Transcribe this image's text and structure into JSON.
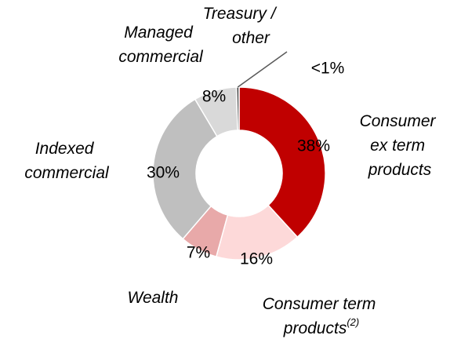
{
  "chart_data": {
    "type": "donut",
    "categories": [
      "Consumer ex term products",
      "Consumer term products",
      "Wealth",
      "Indexed commercial",
      "Managed commercial",
      "Treasury / other"
    ],
    "category_notes": [
      null,
      "(2)",
      null,
      null,
      null,
      null
    ],
    "values": [
      38,
      16,
      7,
      30,
      8,
      0.5
    ],
    "value_labels": [
      "38%",
      "16%",
      "7%",
      "30%",
      "8%",
      "<1%"
    ],
    "colors": [
      "#c00000",
      "#fdd9d9",
      "#e8a9a9",
      "#bfbfbf",
      "#d9d9d9",
      "#595959"
    ]
  }
}
